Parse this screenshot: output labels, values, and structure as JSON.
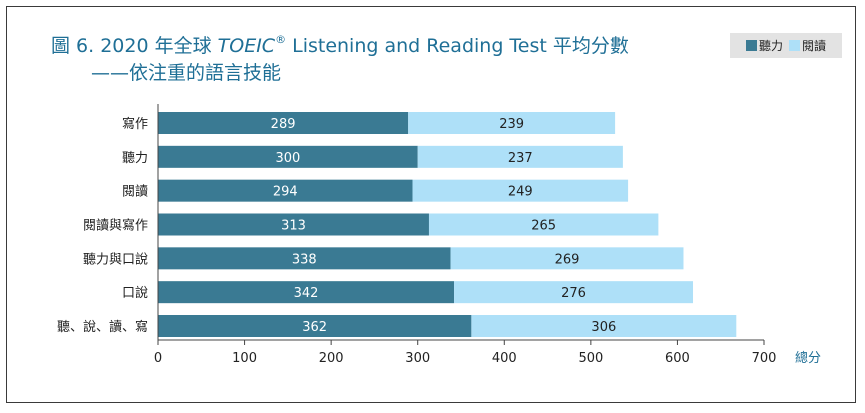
{
  "chart_data": {
    "type": "bar",
    "orientation": "horizontal",
    "stacked": true,
    "title_line1_prefix": "圖 6. 2020 年全球 ",
    "title_line1_brand": "TOEIC",
    "title_line1_mark": "®",
    "title_line1_suffix": " Listening and Reading Test 平均分數",
    "title_line2": "——依注重的語言技能",
    "xlabel": "總分",
    "xlim": [
      0,
      700
    ],
    "xticks": [
      0,
      100,
      200,
      300,
      400,
      500,
      600,
      700
    ],
    "categories": [
      "寫作",
      "聽力",
      "閱讀",
      "閱讀與寫作",
      "聽力與口說",
      "口說",
      "聽、說、讀、寫"
    ],
    "series": [
      {
        "name": "聽力",
        "color": "#3a7a93",
        "values": [
          289,
          300,
          294,
          313,
          338,
          342,
          362
        ]
      },
      {
        "name": "閱讀",
        "color": "#aee0f8",
        "values": [
          239,
          237,
          249,
          265,
          269,
          276,
          306
        ]
      }
    ],
    "legend_position": "top-right",
    "grid": false
  }
}
